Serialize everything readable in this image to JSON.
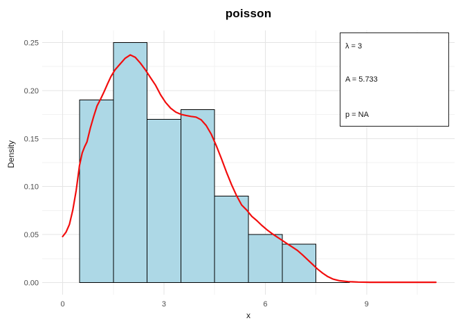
{
  "title": "poisson",
  "axes": {
    "x": {
      "label": "x"
    },
    "y": {
      "label": "Density"
    }
  },
  "annotation_box": {
    "line1": "λ = 3",
    "line2": "A = 5.733",
    "line3": "p = NA"
  },
  "colors": {
    "background": "#FFFFFF",
    "bar_fill": "#ADD8E6",
    "bar_stroke": "#000000",
    "curve": "#F20D0D",
    "grid_major": "#E4E4E4",
    "grid_minor": "#F2F2F2",
    "tick_text": "#4D4D4D",
    "title_text": "#000000",
    "annotation_border": "#1F1F1F"
  },
  "chart_data": {
    "type": "histogram+density",
    "title": "poisson",
    "xlabel": "x",
    "ylabel": "Density",
    "xlim": [
      -0.605,
      11.605
    ],
    "ylim": [
      -0.0125,
      0.2625
    ],
    "grid": true,
    "x_ticks": [
      0,
      3,
      6,
      9
    ],
    "x_tick_labels": [
      "0",
      "3",
      "6",
      "9"
    ],
    "x_minor": [
      1.5,
      4.5,
      7.5,
      10.5
    ],
    "y_ticks": [
      0,
      0.05,
      0.1,
      0.15,
      0.2,
      0.25
    ],
    "y_tick_labels": [
      "0.00",
      "0.05",
      "0.10",
      "0.15",
      "0.20",
      "0.25"
    ],
    "y_minor": [
      0.025,
      0.075,
      0.125,
      0.175,
      0.225
    ],
    "histogram": {
      "bin_start": 0.5,
      "bin_width": 1,
      "densities": [
        0.19,
        0.25,
        0.17,
        0.18,
        0.09,
        0.05,
        0.04,
        0.0
      ]
    },
    "density_curve": [
      [
        0.0,
        0.048
      ],
      [
        0.1,
        0.0525
      ],
      [
        0.2,
        0.0605
      ],
      [
        0.3,
        0.0755
      ],
      [
        0.4,
        0.096
      ],
      [
        0.5,
        0.122
      ],
      [
        0.58,
        0.135
      ],
      [
        0.65,
        0.1415
      ],
      [
        0.72,
        0.1465
      ],
      [
        0.82,
        0.161
      ],
      [
        0.92,
        0.173
      ],
      [
        1.02,
        0.184
      ],
      [
        1.13,
        0.1915
      ],
      [
        1.23,
        0.199
      ],
      [
        1.33,
        0.207
      ],
      [
        1.43,
        0.2145
      ],
      [
        1.55,
        0.2215
      ],
      [
        1.7,
        0.2275
      ],
      [
        1.85,
        0.2335
      ],
      [
        2.0,
        0.237
      ],
      [
        2.15,
        0.2345
      ],
      [
        2.3,
        0.2285
      ],
      [
        2.45,
        0.2215
      ],
      [
        2.6,
        0.2135
      ],
      [
        2.75,
        0.2055
      ],
      [
        2.9,
        0.1955
      ],
      [
        3.05,
        0.1875
      ],
      [
        3.2,
        0.1815
      ],
      [
        3.35,
        0.1775
      ],
      [
        3.5,
        0.1752
      ],
      [
        3.65,
        0.174
      ],
      [
        3.8,
        0.173
      ],
      [
        3.95,
        0.1723
      ],
      [
        4.1,
        0.1695
      ],
      [
        4.25,
        0.1635
      ],
      [
        4.4,
        0.1545
      ],
      [
        4.55,
        0.1425
      ],
      [
        4.7,
        0.129
      ],
      [
        4.85,
        0.115
      ],
      [
        5.0,
        0.102
      ],
      [
        5.15,
        0.0905
      ],
      [
        5.3,
        0.0808
      ],
      [
        5.45,
        0.0755
      ],
      [
        5.6,
        0.069
      ],
      [
        5.75,
        0.0645
      ],
      [
        5.9,
        0.0595
      ],
      [
        6.05,
        0.055
      ],
      [
        6.2,
        0.051
      ],
      [
        6.35,
        0.0475
      ],
      [
        6.5,
        0.044
      ],
      [
        6.65,
        0.0405
      ],
      [
        6.8,
        0.037
      ],
      [
        6.95,
        0.0335
      ],
      [
        7.1,
        0.029
      ],
      [
        7.25,
        0.024
      ],
      [
        7.4,
        0.019
      ],
      [
        7.55,
        0.014
      ],
      [
        7.7,
        0.0098
      ],
      [
        7.85,
        0.0063
      ],
      [
        8.0,
        0.0038
      ],
      [
        8.2,
        0.002
      ],
      [
        8.45,
        0.001
      ],
      [
        8.75,
        0.0006
      ],
      [
        9.1,
        0.0004
      ],
      [
        9.6,
        0.0004
      ],
      [
        10.1,
        0.0004
      ],
      [
        10.6,
        0.0004
      ],
      [
        11.05,
        0.0004
      ]
    ],
    "legend_position": "top-right box",
    "annotations": [
      "λ = 3",
      "A = 5.733",
      "p = NA"
    ]
  }
}
